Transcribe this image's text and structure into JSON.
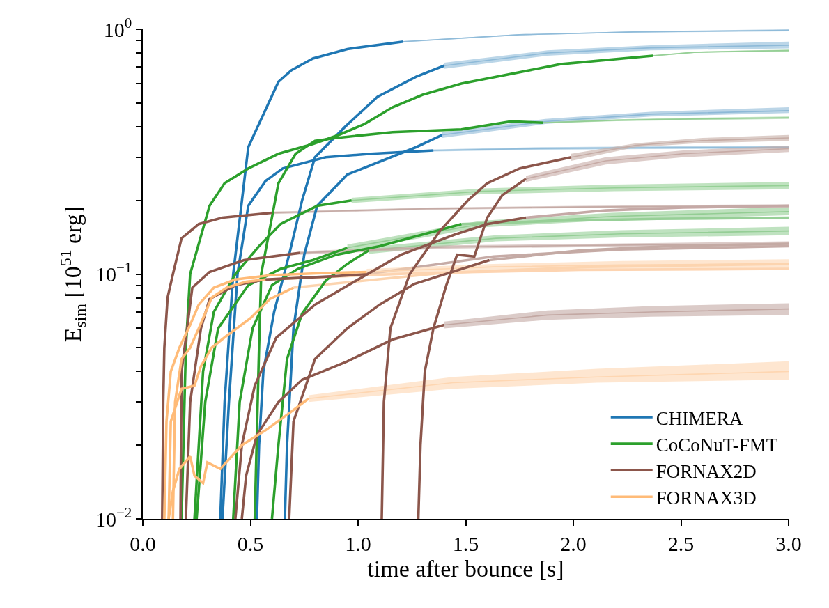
{
  "chart_data": {
    "type": "line",
    "xlabel": "time after bounce [s]",
    "ylabel": "E$_{sim}$ [10$^{51}$ erg]",
    "xlim": [
      0,
      3.0
    ],
    "xticks": [
      {
        "value": 0,
        "label": "0.0"
      },
      0.5,
      {
        "value": 1,
        "label": "1.0"
      },
      1.5,
      {
        "value": 2,
        "label": "2.0"
      },
      2.5,
      {
        "value": 3,
        "label": "3.0"
      }
    ],
    "ylim": [
      0.01,
      1
    ],
    "log": true,
    "yticks": [
      {
        "value": 0.01,
        "label": "10$^{−2}$"
      },
      {
        "value": 0.02,
        "label": null
      },
      {
        "value": 0.03,
        "label": null
      },
      {
        "value": 0.04,
        "label": null
      },
      {
        "value": 0.05,
        "label": null
      },
      {
        "value": 0.06,
        "label": null
      },
      {
        "value": 0.07,
        "label": null
      },
      {
        "value": 0.08,
        "label": null
      },
      {
        "value": 0.09,
        "label": null
      },
      {
        "value": 0.1,
        "label": "10$^{−1}$"
      },
      {
        "value": 0.2,
        "label": null
      },
      {
        "value": 0.3,
        "label": null
      },
      {
        "value": 0.4,
        "label": null
      },
      {
        "value": 0.5,
        "label": null
      },
      {
        "value": 0.6,
        "label": null
      },
      {
        "value": 0.7,
        "label": null
      },
      {
        "value": 0.8,
        "label": null
      },
      {
        "value": 0.9,
        "label": null
      },
      {
        "value": 1,
        "label": "10$^{0}$"
      }
    ],
    "legend": "bottom right",
    "marker": "none",
    "line_style": "solid",
    "series": [
      {
        "color": "#8fbbd9",
        "x": [
          1.21,
          1.75,
          2.28,
          3.0
        ],
        "values": [
          0.89,
          0.95,
          0.975,
          0.99
        ],
        "lower": [
          0.885,
          0.945,
          0.97,
          0.98
        ],
        "upper": [
          0.895,
          0.955,
          0.98,
          1.0
        ]
      },
      {
        "color": "#8ebad8",
        "x": [
          1.4,
          1.88,
          2.36,
          3.0
        ],
        "values": [
          0.71,
          0.8,
          0.84,
          0.86
        ],
        "lower": [
          0.69,
          0.78,
          0.82,
          0.835
        ],
        "upper": [
          0.73,
          0.82,
          0.86,
          0.89
        ]
      },
      {
        "color": "#90bcda",
        "x": [
          1.35,
          1.85,
          2.34,
          3.0
        ],
        "values": [
          0.32,
          0.326,
          0.328,
          0.33
        ],
        "lower": [
          0.317,
          0.322,
          0.324,
          0.325
        ],
        "upper": [
          0.323,
          0.33,
          0.332,
          0.335
        ]
      },
      {
        "color": "#8db9d7",
        "x": [
          1.39,
          1.87,
          2.36,
          3.0
        ],
        "values": [
          0.37,
          0.42,
          0.45,
          0.465
        ],
        "lower": [
          0.36,
          0.41,
          0.44,
          0.455
        ],
        "upper": [
          0.38,
          0.43,
          0.46,
          0.48
        ]
      },
      {
        "color": "#95cf95",
        "x": [
          2.37,
          2.56,
          2.75,
          3.0
        ],
        "values": [
          0.78,
          0.805,
          0.812,
          0.818
        ],
        "lower": [
          0.775,
          0.8,
          0.806,
          0.81
        ],
        "upper": [
          0.785,
          0.81,
          0.818,
          0.825
        ]
      },
      {
        "color": "#94ce94",
        "x": [
          1.86,
          2.2,
          2.54,
          3.0
        ],
        "values": [
          0.415,
          0.425,
          0.43,
          0.435
        ],
        "lower": [
          0.412,
          0.421,
          0.425,
          0.43
        ],
        "upper": [
          0.418,
          0.429,
          0.435,
          0.44
        ]
      },
      {
        "color": "#96d096",
        "x": [
          0.97,
          1.58,
          2.19,
          3.0
        ],
        "values": [
          0.2,
          0.218,
          0.225,
          0.23
        ],
        "lower": [
          0.195,
          0.212,
          0.218,
          0.222
        ],
        "upper": [
          0.205,
          0.224,
          0.232,
          0.238
        ]
      },
      {
        "color": "#93cd93",
        "x": [
          0.95,
          1.57,
          2.18,
          3.0
        ],
        "values": [
          0.128,
          0.16,
          0.172,
          0.18
        ],
        "lower": [
          0.124,
          0.155,
          0.166,
          0.174
        ],
        "upper": [
          0.132,
          0.165,
          0.178,
          0.188
        ]
      },
      {
        "color": "#97cf97",
        "x": [
          1.48,
          1.94,
          2.39,
          3.0
        ],
        "values": [
          0.16,
          0.165,
          0.168,
          0.17
        ]
      },
      {
        "color": "#95ce96",
        "x": [
          1.05,
          1.64,
          2.22,
          3.0
        ],
        "values": [
          0.125,
          0.14,
          0.146,
          0.15
        ],
        "lower": [
          0.121,
          0.136,
          0.141,
          0.144
        ],
        "upper": [
          0.129,
          0.144,
          0.151,
          0.156
        ]
      },
      {
        "color": "#c5aaa5",
        "x": [
          0.6,
          1.32,
          2.04,
          3.0
        ],
        "values": [
          0.178,
          0.185,
          0.188,
          0.19
        ],
        "lower": [
          0.176,
          0.183,
          0.186,
          0.187
        ],
        "upper": [
          0.18,
          0.187,
          0.19,
          0.193
        ]
      },
      {
        "color": "#c4a9a4",
        "x": [
          0.73,
          1.41,
          2.09,
          3.0
        ],
        "values": [
          0.122,
          0.129,
          0.131,
          0.133
        ],
        "lower": [
          0.12,
          0.127,
          0.129,
          0.13
        ],
        "upper": [
          0.124,
          0.131,
          0.133,
          0.136
        ]
      },
      {
        "color": "#c6aba6",
        "x": [
          1.04,
          1.63,
          2.22,
          3.0
        ],
        "values": [
          0.1,
          0.118,
          0.126,
          0.13
        ]
      },
      {
        "color": "#c3a8a3",
        "x": [
          1.4,
          1.88,
          2.36,
          3.0
        ],
        "values": [
          0.062,
          0.068,
          0.07,
          0.072
        ],
        "lower": [
          0.06,
          0.065,
          0.067,
          0.068
        ],
        "upper": [
          0.064,
          0.071,
          0.074,
          0.076
        ]
      },
      {
        "color": "#c5a9a6",
        "x": [
          1.78,
          2.15,
          2.51,
          3.0
        ],
        "values": [
          0.17,
          0.182,
          0.187,
          0.19
        ]
      },
      {
        "color": "#c4aaa4",
        "x": [
          1.61,
          2.03,
          2.44,
          3.0
        ],
        "values": [
          0.114,
          0.125,
          0.13,
          0.133
        ]
      },
      {
        "color": "#c6aaa5",
        "x": [
          1.78,
          2.15,
          2.51,
          3.0
        ],
        "values": [
          0.245,
          0.29,
          0.31,
          0.325
        ],
        "lower": [
          0.238,
          0.28,
          0.3,
          0.315
        ],
        "upper": [
          0.252,
          0.3,
          0.32,
          0.335
        ]
      },
      {
        "color": "#c5aba4",
        "x": [
          1.99,
          2.29,
          2.6,
          3.0
        ],
        "values": [
          0.3,
          0.336,
          0.351,
          0.36
        ],
        "lower": [
          0.29,
          0.33,
          0.343,
          0.35
        ],
        "upper": [
          0.31,
          0.342,
          0.36,
          0.37
        ]
      },
      {
        "color": "#fdd5b0",
        "x": [
          1.04,
          1.63,
          2.22,
          3.0
        ],
        "values": [
          0.102,
          0.107,
          0.109,
          0.11
        ],
        "lower": [
          0.099,
          0.104,
          0.105,
          0.105
        ],
        "upper": [
          0.105,
          0.11,
          0.113,
          0.115
        ]
      },
      {
        "color": "#fcd4af",
        "x": [
          0.7,
          1.39,
          2.08,
          3.0
        ],
        "values": [
          0.088,
          0.101,
          0.107,
          0.11
        ]
      },
      {
        "color": "#fed6b1",
        "x": [
          0.77,
          1.44,
          2.11,
          3.0
        ],
        "values": [
          0.031,
          0.036,
          0.038,
          0.04
        ],
        "lower": [
          0.03,
          0.034,
          0.036,
          0.037
        ],
        "upper": [
          0.032,
          0.038,
          0.041,
          0.044
        ]
      },
      {
        "color": "#fdd4b1",
        "x": [
          0.57,
          1.3,
          2.03,
          3.0
        ],
        "values": [
          0.095,
          0.101,
          0.104,
          0.105
        ]
      },
      {
        "name": "CHIMERA",
        "color": "#1f77b4",
        "x": [
          0.36,
          0.38,
          0.42,
          0.49,
          0.63,
          0.69,
          0.79,
          0.95,
          1.21
        ],
        "values": [
          0.01,
          0.03,
          0.1,
          0.33,
          0.61,
          0.68,
          0.76,
          0.83,
          0.89
        ]
      },
      {
        "color": "#1f77b4",
        "x": [
          0.53,
          0.54,
          0.56,
          0.61,
          0.68,
          0.74,
          0.8,
          0.94,
          1.09,
          1.27,
          1.4
        ],
        "values": [
          0.01,
          0.02,
          0.04,
          0.07,
          0.12,
          0.2,
          0.3,
          0.4,
          0.53,
          0.64,
          0.71
        ]
      },
      {
        "color": "#1f77b4",
        "x": [
          0.37,
          0.4,
          0.44,
          0.49,
          0.57,
          0.65,
          0.85,
          1.06,
          1.35
        ],
        "values": [
          0.01,
          0.03,
          0.1,
          0.19,
          0.24,
          0.27,
          0.3,
          0.31,
          0.32
        ]
      },
      {
        "color": "#1f77b4",
        "x": [
          0.66,
          0.67,
          0.7,
          0.75,
          0.81,
          0.95,
          1.11,
          1.27,
          1.39
        ],
        "values": [
          0.01,
          0.02,
          0.06,
          0.12,
          0.19,
          0.255,
          0.29,
          0.33,
          0.37
        ]
      },
      {
        "name": "CoCoNuT-FMT",
        "color": "#2ca02c",
        "x": [
          0.18,
          0.2,
          0.22,
          0.31,
          0.38,
          0.49,
          0.63,
          0.79,
          0.91,
          1.03,
          1.16,
          1.3,
          1.48,
          1.94,
          2.37
        ],
        "values": [
          0.01,
          0.05,
          0.1,
          0.19,
          0.235,
          0.27,
          0.31,
          0.34,
          0.37,
          0.41,
          0.48,
          0.54,
          0.6,
          0.72,
          0.78
        ]
      },
      {
        "color": "#2ca02c",
        "x": [
          0.52,
          0.54,
          0.55,
          0.63,
          0.71,
          0.8,
          0.9,
          1.16,
          1.48,
          1.71,
          1.86
        ],
        "values": [
          0.01,
          0.05,
          0.1,
          0.235,
          0.31,
          0.35,
          0.36,
          0.38,
          0.39,
          0.42,
          0.415
        ]
      },
      {
        "color": "#2ca02c",
        "x": [
          0.24,
          0.28,
          0.33,
          0.43,
          0.54,
          0.64,
          0.81,
          0.97
        ],
        "values": [
          0.01,
          0.04,
          0.07,
          0.1,
          0.13,
          0.16,
          0.19,
          0.2
        ]
      },
      {
        "color": "#2ca02c",
        "x": [
          0.25,
          0.29,
          0.35,
          0.49,
          0.64,
          0.79,
          0.95
        ],
        "values": [
          0.01,
          0.03,
          0.06,
          0.09,
          0.105,
          0.114,
          0.128
        ]
      },
      {
        "color": "#2ca02c",
        "x": [
          0.42,
          0.45,
          0.51,
          0.6,
          0.72,
          0.9,
          1.1,
          1.3,
          1.48
        ],
        "values": [
          0.01,
          0.03,
          0.06,
          0.09,
          0.105,
          0.12,
          0.13,
          0.145,
          0.16
        ]
      },
      {
        "color": "#2ca02c",
        "x": [
          0.6,
          0.63,
          0.67,
          0.74,
          0.85,
          0.95,
          1.05
        ],
        "values": [
          0.01,
          0.02,
          0.045,
          0.069,
          0.094,
          0.11,
          0.125
        ]
      },
      {
        "name": "FORNAX2D",
        "color": "#8c564b",
        "x": [
          0.09,
          0.095,
          0.1,
          0.115,
          0.14,
          0.18,
          0.26,
          0.37,
          0.6
        ],
        "values": [
          0.01,
          0.03,
          0.05,
          0.08,
          0.1,
          0.14,
          0.16,
          0.17,
          0.178
        ]
      },
      {
        "color": "#8c564b",
        "x": [
          0.175,
          0.18,
          0.23,
          0.31,
          0.47,
          0.73
        ],
        "values": [
          0.01,
          0.04,
          0.088,
          0.102,
          0.114,
          0.122
        ]
      },
      {
        "color": "#8c564b",
        "x": [
          0.2,
          0.22,
          0.27,
          0.31,
          0.43,
          0.57,
          0.89,
          1.04
        ],
        "values": [
          0.01,
          0.03,
          0.06,
          0.079,
          0.09,
          0.095,
          0.098,
          0.1
        ]
      },
      {
        "color": "#8c564b",
        "x": [
          0.46,
          0.48,
          0.53,
          0.63,
          0.74,
          0.95,
          1.16,
          1.4
        ],
        "values": [
          0.01,
          0.015,
          0.022,
          0.03,
          0.037,
          0.044,
          0.054,
          0.062
        ]
      },
      {
        "color": "#8c564b",
        "x": [
          0.43,
          0.46,
          0.52,
          0.62,
          0.8,
          1.0,
          1.2,
          1.45,
          1.6,
          1.78
        ],
        "values": [
          0.01,
          0.02,
          0.035,
          0.055,
          0.075,
          0.095,
          0.12,
          0.145,
          0.16,
          0.17
        ]
      },
      {
        "color": "#8c564b",
        "x": [
          0.68,
          0.7,
          0.8,
          0.95,
          1.1,
          1.26,
          1.61
        ],
        "values": [
          0.01,
          0.025,
          0.045,
          0.06,
          0.075,
          0.091,
          0.114
        ]
      },
      {
        "color": "#8c564b",
        "x": [
          1.28,
          1.29,
          1.31,
          1.35,
          1.41,
          1.46,
          1.54,
          1.6,
          1.67,
          1.78
        ],
        "values": [
          0.01,
          0.02,
          0.04,
          0.06,
          0.09,
          0.12,
          0.118,
          0.17,
          0.21,
          0.245
        ]
      },
      {
        "color": "#8c564b",
        "x": [
          1.11,
          1.12,
          1.15,
          1.24,
          1.38,
          1.51,
          1.6,
          1.75,
          1.99
        ],
        "values": [
          0.01,
          0.03,
          0.06,
          0.1,
          0.15,
          0.2,
          0.235,
          0.27,
          0.3
        ]
      },
      {
        "name": "FORNAX3D",
        "color": "#ffbb78",
        "x": [
          0.1,
          0.11,
          0.13,
          0.17,
          0.22,
          0.26,
          0.33,
          0.43,
          0.6,
          0.85,
          1.04
        ],
        "values": [
          0.01,
          0.025,
          0.04,
          0.05,
          0.062,
          0.075,
          0.088,
          0.095,
          0.099,
          0.101,
          0.102
        ]
      },
      {
        "color": "#ffbb78",
        "x": [
          0.12,
          0.13,
          0.18,
          0.24,
          0.27,
          0.32,
          0.39,
          0.5,
          0.59,
          0.7
        ],
        "values": [
          0.01,
          0.025,
          0.034,
          0.035,
          0.042,
          0.05,
          0.056,
          0.066,
          0.079,
          0.088
        ]
      },
      {
        "color": "#ffbb78",
        "x": [
          0.12,
          0.14,
          0.17,
          0.22,
          0.24,
          0.28,
          0.3,
          0.36,
          0.46,
          0.57,
          0.68,
          0.77
        ],
        "values": [
          0.01,
          0.013,
          0.016,
          0.018,
          0.015,
          0.014,
          0.017,
          0.016,
          0.02,
          0.023,
          0.027,
          0.031
        ]
      },
      {
        "color": "#ffbb78",
        "x": [
          0.14,
          0.15,
          0.18,
          0.22,
          0.26,
          0.32,
          0.39,
          0.48,
          0.57
        ],
        "values": [
          0.01,
          0.03,
          0.045,
          0.05,
          0.06,
          0.08,
          0.088,
          0.093,
          0.095
        ]
      }
    ]
  }
}
